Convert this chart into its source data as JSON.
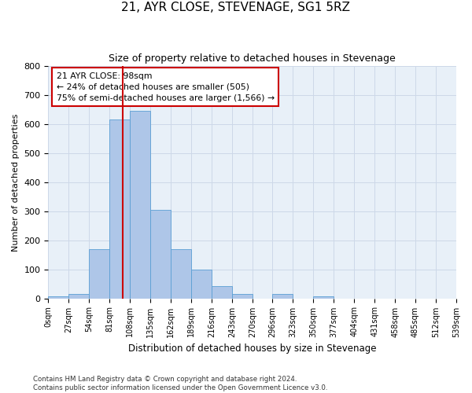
{
  "title": "21, AYR CLOSE, STEVENAGE, SG1 5RZ",
  "subtitle": "Size of property relative to detached houses in Stevenage",
  "xlabel": "Distribution of detached houses by size in Stevenage",
  "ylabel": "Number of detached properties",
  "bar_edges": [
    0,
    27,
    54,
    81,
    108,
    135,
    162,
    189,
    216,
    243,
    270,
    296,
    323,
    350,
    377,
    404,
    431,
    458,
    485,
    512,
    539
  ],
  "bar_heights": [
    8,
    14,
    170,
    617,
    647,
    305,
    170,
    100,
    42,
    14,
    0,
    15,
    0,
    7,
    0,
    0,
    0,
    0,
    0,
    0
  ],
  "bar_color": "#aec6e8",
  "bar_edge_color": "#5a9fd4",
  "property_sqm": 98,
  "vline_color": "#cc0000",
  "annotation_text": "21 AYR CLOSE: 98sqm\n← 24% of detached houses are smaller (505)\n75% of semi-detached houses are larger (1,566) →",
  "annotation_box_color": "#cc0000",
  "ylim": [
    0,
    800
  ],
  "yticks": [
    0,
    100,
    200,
    300,
    400,
    500,
    600,
    700,
    800
  ],
  "grid_color": "#cdd8e8",
  "bg_color": "#e8f0f8",
  "footer_line1": "Contains HM Land Registry data © Crown copyright and database right 2024.",
  "footer_line2": "Contains public sector information licensed under the Open Government Licence v3.0."
}
